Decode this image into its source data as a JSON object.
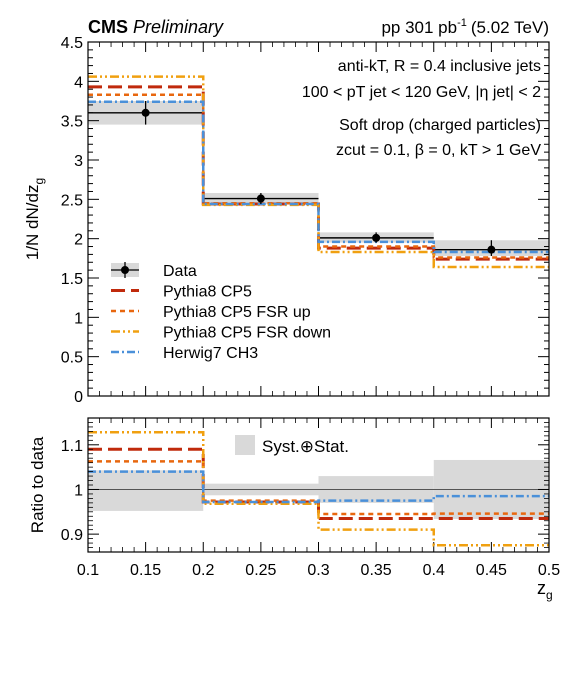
{
  "header": {
    "experiment": "CMS",
    "status": "Preliminary",
    "lumi_text": "pp 301 pb",
    "lumi_sup": "-1",
    "energy": "(5.02 TeV)"
  },
  "annotations": {
    "line1": "anti-kT, R = 0.4 inclusive jets",
    "line2": "100 < pT jet < 120 GeV, |η jet| < 2",
    "line3": "Soft drop (charged particles)",
    "line4": "zcut = 0.1, β = 0, kT > 1 GeV"
  },
  "colors": {
    "data": "#000000",
    "band": "#d9d9d9",
    "pythia": "#c02a0c",
    "fsr_up": "#e8670f",
    "fsr_down": "#f0a010",
    "herwig": "#4a90d9"
  },
  "chart_data": [
    {
      "type": "line",
      "panel": "main",
      "xlabel": "zg",
      "ylabel": "1/N dN/dzg",
      "xlim": [
        0.1,
        0.5
      ],
      "ylim": [
        0,
        4.5
      ],
      "x_ticks": [
        "0.1",
        "0.15",
        "0.2",
        "0.25",
        "0.3",
        "0.35",
        "0.4",
        "0.45",
        "0.5"
      ],
      "y_ticks": [
        "0",
        "0.5",
        "1",
        "1.5",
        "2",
        "2.5",
        "3",
        "3.5",
        "4",
        "4.5"
      ],
      "bin_edges": [
        0.1,
        0.2,
        0.3,
        0.4,
        0.5
      ],
      "series": [
        {
          "name": "Data",
          "key": "data",
          "style": "points",
          "x": [
            0.15,
            0.25,
            0.35,
            0.45
          ],
          "values": [
            3.6,
            2.51,
            2.01,
            1.86
          ],
          "err_low": [
            3.45,
            2.44,
            1.95,
            1.78
          ],
          "err_high": [
            3.75,
            2.58,
            2.08,
            1.98
          ]
        },
        {
          "name": "Pythia8 CP5",
          "key": "pythia",
          "style": "hist",
          "values": [
            3.93,
            2.44,
            1.88,
            1.74
          ]
        },
        {
          "name": "Pythia8 CP5 FSR up",
          "key": "fsr_up",
          "style": "hist",
          "values": [
            3.83,
            2.45,
            1.9,
            1.76
          ]
        },
        {
          "name": "Pythia8 CP5 FSR down",
          "key": "fsr_down",
          "style": "hist",
          "values": [
            4.06,
            2.43,
            1.83,
            1.64
          ]
        },
        {
          "name": "Herwig7 CH3",
          "key": "herwig",
          "style": "hist",
          "values": [
            3.74,
            2.44,
            1.96,
            1.83
          ]
        }
      ],
      "legend_position": "left-middle"
    },
    {
      "type": "line",
      "panel": "ratio",
      "xlabel": "zg",
      "ylabel": "Ratio to data",
      "xlim": [
        0.1,
        0.5
      ],
      "ylim": [
        0.86,
        1.16
      ],
      "y_ticks": [
        "0.9",
        "1",
        "1.1"
      ],
      "y_tick_values": [
        0.9,
        1.0,
        1.1
      ],
      "band_label": "Syst.⊕Stat.",
      "band_low": [
        0.952,
        0.987,
        0.97,
        0.934
      ],
      "band_high": [
        1.043,
        1.013,
        1.03,
        1.066
      ],
      "series": [
        {
          "name": "Pythia8 CP5",
          "key": "pythia",
          "values": [
            1.09,
            0.972,
            0.935,
            0.935
          ]
        },
        {
          "name": "Pythia8 CP5 FSR up",
          "key": "fsr_up",
          "values": [
            1.063,
            0.975,
            0.945,
            0.946
          ]
        },
        {
          "name": "Pythia8 CP5 FSR down",
          "key": "fsr_down",
          "values": [
            1.128,
            0.968,
            0.91,
            0.875
          ]
        },
        {
          "name": "Herwig7 CH3",
          "key": "herwig",
          "values": [
            1.04,
            0.972,
            0.975,
            0.985
          ]
        }
      ]
    }
  ]
}
